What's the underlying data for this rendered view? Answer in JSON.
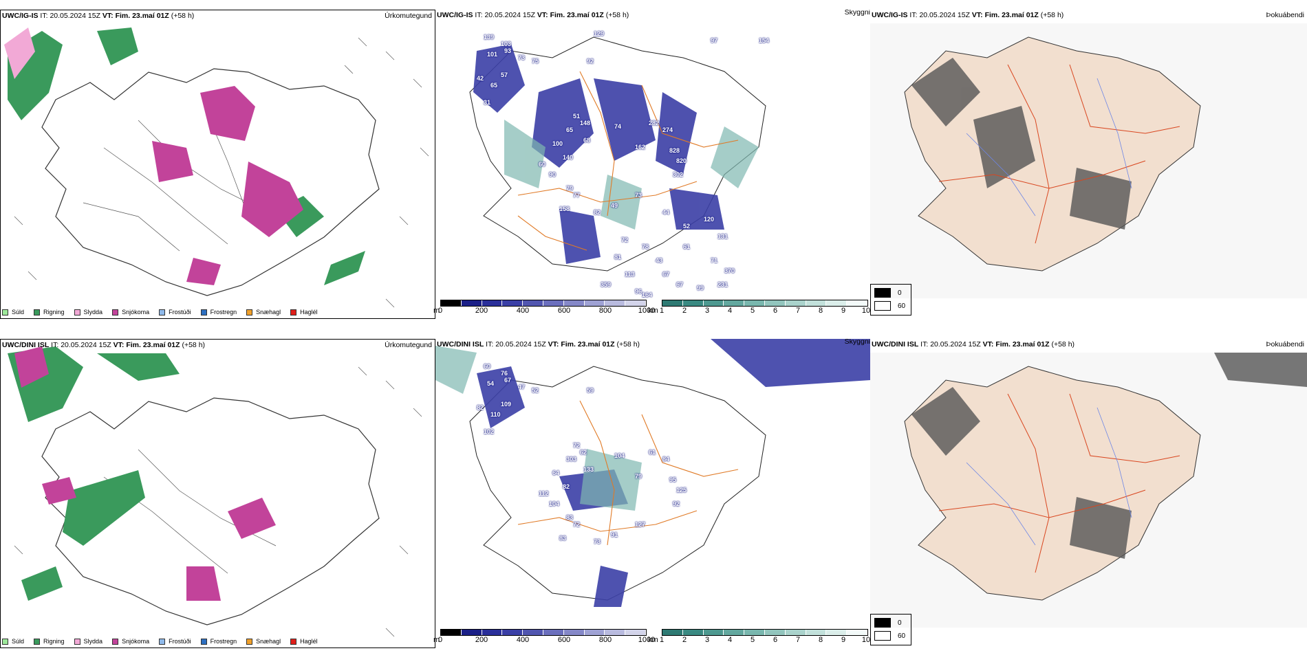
{
  "rows": [
    {
      "model": "UWC/IG-IS",
      "it_label": "IT:",
      "it_value": "20.05.2024 15Z",
      "vt_label": "VT:",
      "vt_value": "Fim. 23.maí 01Z",
      "lead": "(+58 h)",
      "panels": [
        {
          "title": "Úrkomutegund"
        },
        {
          "title": "Skyggni",
          "numbers": [
            "139",
            "103",
            "101",
            "93",
            "73",
            "75",
            "57",
            "65",
            "42",
            "31",
            "92",
            "51",
            "65",
            "148",
            "100",
            "140",
            "90",
            "60",
            "68",
            "74",
            "282",
            "274",
            "162",
            "828",
            "820",
            "302",
            "79",
            "77",
            "158",
            "82",
            "49",
            "73",
            "44",
            "52",
            "120",
            "131",
            "61",
            "71",
            "370",
            "231",
            "67",
            "99",
            "164",
            "113",
            "96",
            "359",
            "72",
            "81",
            "78",
            "43",
            "67",
            "129",
            "97",
            "154"
          ]
        },
        {
          "title": "Þokuábendi"
        }
      ]
    },
    {
      "model": "UWC/DINI ISL",
      "it_label": "IT:",
      "it_value": "20.05.2024 15Z",
      "vt_label": "VT:",
      "vt_value": "Fim. 23.maí 01Z",
      "lead": "(+58 h)",
      "panels": [
        {
          "title": "Úrkomutegund"
        },
        {
          "title": "Skyggni",
          "numbers": [
            "60",
            "76",
            "54",
            "67",
            "47",
            "52",
            "109",
            "110",
            "82",
            "102",
            "59",
            "72",
            "303",
            "62",
            "64",
            "82",
            "104",
            "112",
            "133",
            "104",
            "61",
            "84",
            "79",
            "95",
            "125",
            "92",
            "83",
            "72",
            "83",
            "73",
            "91",
            "127"
          ]
        },
        {
          "title": "Þokuábendi"
        }
      ]
    }
  ],
  "precip_legend": [
    "Súld",
    "Rigning",
    "Slydda",
    "Snjókoma",
    "Frostúði",
    "Frostregn",
    "Snæhagl",
    "Haglél"
  ],
  "precip_colors": [
    "#9de89a",
    "#3a9a5c",
    "#f2a9d6",
    "#c2439a",
    "#8fb9ea",
    "#2d6fc0",
    "#f0a02a",
    "#e0201b"
  ],
  "cloud_scale": {
    "unit": "m",
    "ticks": [
      "0",
      "200",
      "400",
      "600",
      "800",
      "1000"
    ]
  },
  "vis_scale": {
    "unit": "km",
    "ticks": [
      "1",
      "2",
      "3",
      "4",
      "5",
      "6",
      "7",
      "8",
      "9",
      "10"
    ]
  },
  "fog_legend": {
    "min": "0",
    "max": "60"
  }
}
